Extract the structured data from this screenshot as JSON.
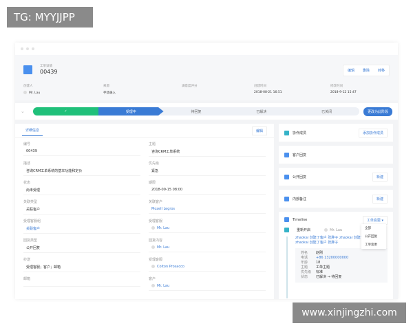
{
  "overlay_tag": "TG: MYYJJPP",
  "watermark": "www.xinjingzhi.com",
  "header": {
    "subtitle": "工单详情",
    "ticket_id": "00439",
    "actions": [
      "编辑",
      "删除",
      "转移"
    ],
    "meta": [
      {
        "label": "创建人",
        "value": "Mr. Lau"
      },
      {
        "label": "来源",
        "value": "手动录入"
      },
      {
        "label": "满意度评分",
        "value": ""
      },
      {
        "label": "创建时间",
        "value": "2018-08-21 16:51"
      },
      {
        "label": "修改时间",
        "value": "2018-9-12 15:47"
      }
    ]
  },
  "progress": {
    "stages": [
      "✓",
      "受理中",
      "待回复",
      "已解决",
      "已关闭"
    ],
    "current": 1,
    "button": "更改为此阶段"
  },
  "details": {
    "tab": "详细信息",
    "edit": "编辑",
    "fields": [
      {
        "label": "编号",
        "value": "00439"
      },
      {
        "label": "主题",
        "value": "咨询CRM工单系统"
      },
      {
        "label": "描述",
        "value": "咨询CRM工单系统的基本功能和定价"
      },
      {
        "label": "优先级",
        "value": "紧急"
      },
      {
        "label": "状态",
        "value": "尚未受理"
      },
      {
        "label": "期限",
        "value": "2018-09-15 08:00"
      },
      {
        "label": "关联类型",
        "value": "关联客户"
      },
      {
        "label": "关联客户",
        "value": "Mozell Legros"
      },
      {
        "label": "受理客服组",
        "value": "关联客户"
      },
      {
        "label": "受理客服",
        "value": "Mr. Lau"
      },
      {
        "label": "回复类型",
        "value": "公开回复"
      },
      {
        "label": "回复内容",
        "value": "Mr. Lau"
      },
      {
        "label": "抄送",
        "value": "受理客服；客户；邮箱"
      },
      {
        "label": "受理客服",
        "value": "Colton Prosacco"
      },
      {
        "label": "邮箱",
        "value": ""
      },
      {
        "label": "客户",
        "value": "Mr. Lau"
      }
    ]
  },
  "sidebar": {
    "cards": [
      {
        "title": "协作成员",
        "button": "添加协作成员"
      },
      {
        "title": "客户回复",
        "button": ""
      },
      {
        "title": "公开回复",
        "button": "新建"
      },
      {
        "title": "内部备注",
        "button": "新建"
      }
    ]
  },
  "timeline": {
    "title": "Timeline",
    "filter": "工单变更",
    "filter_options": [
      "全部",
      "公开回复",
      "工单变更"
    ],
    "event": {
      "title": "重新开启",
      "user": "Mr. Lau",
      "log1": "zhaokai 创建了客户 张胖子 zhaokai 创建了",
      "log2": "zhaokai 创建了客户 张胖子",
      "rows": [
        {
          "k": "姓名",
          "v": "赵刚"
        },
        {
          "k": "电话",
          "v": "+86 13200000000"
        },
        {
          "k": "年龄",
          "v": "18"
        },
        {
          "k": "主题",
          "v": "工单主题"
        },
        {
          "k": "优先级",
          "v": "标准"
        },
        {
          "k": "状态",
          "v": "已解决 → 待回复"
        }
      ]
    }
  }
}
